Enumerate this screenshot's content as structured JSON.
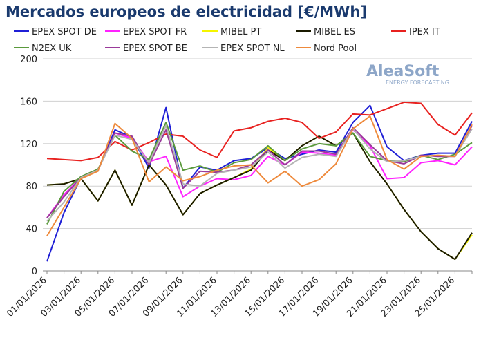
{
  "chart_data": {
    "type": "line",
    "title": "Mercados europeos de electricidad [€/MWh]",
    "logo": {
      "name": "AleaSoft",
      "tagline": "ENERGY FORECASTING"
    },
    "categories": [
      "01/01/2026",
      null,
      "03/01/2026",
      null,
      "05/01/2026",
      null,
      "07/01/2026",
      null,
      "09/01/2026",
      null,
      "11/01/2026",
      null,
      "13/01/2026",
      null,
      "15/01/2026",
      null,
      "17/01/2026",
      null,
      "19/01/2026",
      null,
      "21/01/2026",
      null,
      "23/01/2026",
      null,
      "25/01/2026",
      null
    ],
    "series": [
      {
        "name": "EPEX SPOT DE",
        "color": "#1f1fd6",
        "values": [
          9,
          55,
          88,
          95,
          133,
          126,
          97,
          154,
          78,
          98,
          95,
          104,
          106,
          116,
          106,
          110,
          114,
          112,
          140,
          156,
          117,
          104,
          109,
          111,
          111,
          141
        ]
      },
      {
        "name": "EPEX SPOT FR",
        "color": "#ff22ff",
        "values": [
          50,
          72,
          88,
          95,
          130,
          125,
          103,
          108,
          70,
          80,
          87,
          86,
          90,
          108,
          100,
          112,
          111,
          109,
          133,
          118,
          87,
          88,
          102,
          104,
          100,
          117
        ]
      },
      {
        "name": "MIBEL PT",
        "color": "#f5f500",
        "values": [
          81,
          82,
          87,
          66,
          95,
          62,
          100,
          81,
          53,
          73,
          81,
          88,
          96,
          116,
          104,
          118,
          127,
          118,
          130,
          103,
          82,
          58,
          37,
          21,
          11,
          34
        ]
      },
      {
        "name": "MIBEL ES",
        "color": "#1a1a00",
        "values": [
          81,
          82,
          87,
          66,
          95,
          62,
          100,
          81,
          53,
          73,
          81,
          88,
          95,
          114,
          104,
          118,
          127,
          118,
          130,
          103,
          82,
          58,
          37,
          21,
          11,
          36
        ]
      },
      {
        "name": "IPEX IT",
        "color": "#e8211f",
        "values": [
          106,
          105,
          104,
          107,
          122,
          114,
          121,
          129,
          127,
          114,
          107,
          132,
          135,
          141,
          144,
          140,
          125,
          131,
          148,
          147,
          153,
          159,
          158,
          138,
          128,
          149
        ]
      },
      {
        "name": "N2EX UK",
        "color": "#5a9a3c",
        "values": [
          44,
          75,
          89,
          96,
          128,
          113,
          105,
          140,
          95,
          99,
          93,
          102,
          105,
          118,
          104,
          115,
          120,
          118,
          130,
          108,
          104,
          103,
          109,
          105,
          110,
          121
        ]
      },
      {
        "name": "EPEX SPOT BE",
        "color": "#9a3a9a",
        "values": [
          50,
          70,
          88,
          95,
          130,
          127,
          100,
          133,
          78,
          94,
          93,
          95,
          100,
          114,
          100,
          113,
          113,
          110,
          135,
          119,
          104,
          101,
          109,
          108,
          108,
          137
        ]
      },
      {
        "name": "EPEX SPOT NL",
        "color": "#b4b4b4",
        "values": [
          47,
          65,
          88,
          95,
          128,
          124,
          102,
          137,
          82,
          80,
          92,
          95,
          98,
          112,
          97,
          107,
          110,
          108,
          134,
          115,
          103,
          104,
          108,
          109,
          108,
          134
        ]
      },
      {
        "name": "Nord Pool",
        "color": "#ee8a3c",
        "values": [
          33,
          60,
          87,
          94,
          139,
          125,
          84,
          98,
          85,
          89,
          95,
          99,
          100,
          83,
          94,
          80,
          86,
          101,
          134,
          146,
          105,
          96,
          108,
          109,
          108,
          138
        ]
      }
    ],
    "ylim": [
      0,
      200
    ],
    "yticks": [
      0,
      40,
      80,
      120,
      160,
      200
    ],
    "grid": true
  }
}
